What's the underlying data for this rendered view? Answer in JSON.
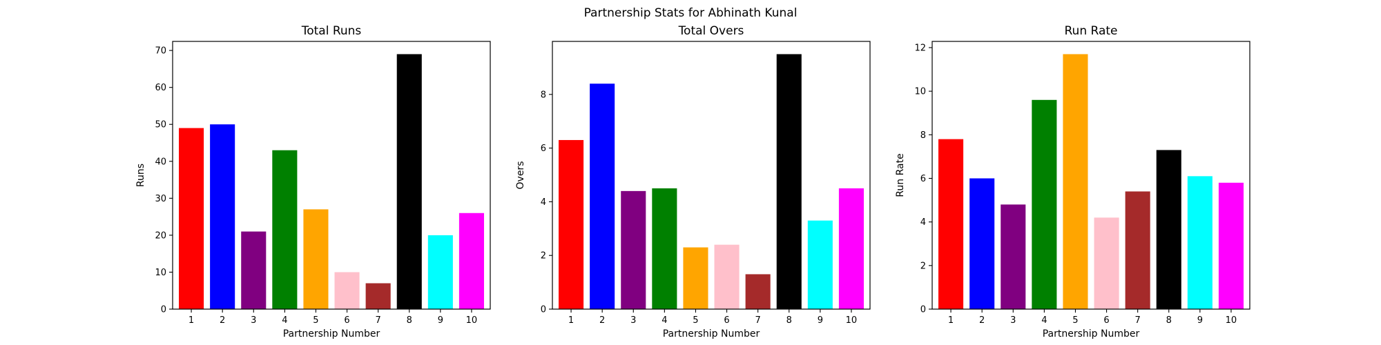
{
  "figure": {
    "title": "Partnership Stats for Abhinath Kunal"
  },
  "chart_data": [
    {
      "type": "bar",
      "title": "Total Runs",
      "xlabel": "Partnership Number",
      "ylabel": "Runs",
      "categories": [
        "1",
        "2",
        "3",
        "4",
        "5",
        "6",
        "7",
        "8",
        "9",
        "10"
      ],
      "values": [
        49,
        50,
        21,
        43,
        27,
        10,
        7,
        69,
        20,
        26
      ],
      "colors": [
        "#ff0000",
        "#0000ff",
        "#800080",
        "#008000",
        "#ffa500",
        "#ffc0cb",
        "#a52a2a",
        "#000000",
        "#00ffff",
        "#ff00ff"
      ],
      "ylim": [
        0,
        72.45
      ],
      "yticks": [
        0,
        10,
        20,
        30,
        40,
        50,
        60,
        70
      ],
      "grid": false
    },
    {
      "type": "bar",
      "title": "Total Overs",
      "xlabel": "Partnership Number",
      "ylabel": "Overs",
      "categories": [
        "1",
        "2",
        "3",
        "4",
        "5",
        "6",
        "7",
        "8",
        "9",
        "10"
      ],
      "values": [
        6.3,
        8.4,
        4.4,
        4.5,
        2.3,
        2.4,
        1.3,
        9.5,
        3.3,
        4.5
      ],
      "colors": [
        "#ff0000",
        "#0000ff",
        "#800080",
        "#008000",
        "#ffa500",
        "#ffc0cb",
        "#a52a2a",
        "#000000",
        "#00ffff",
        "#ff00ff"
      ],
      "ylim": [
        0,
        9.975
      ],
      "yticks": [
        0,
        2,
        4,
        6,
        8
      ],
      "grid": false
    },
    {
      "type": "bar",
      "title": "Run Rate",
      "xlabel": "Partnership Number",
      "ylabel": "Run Rate",
      "categories": [
        "1",
        "2",
        "3",
        "4",
        "5",
        "6",
        "7",
        "8",
        "9",
        "10"
      ],
      "values": [
        7.8,
        6.0,
        4.8,
        9.6,
        11.7,
        4.2,
        5.4,
        7.3,
        6.1,
        5.8
      ],
      "colors": [
        "#ff0000",
        "#0000ff",
        "#800080",
        "#008000",
        "#ffa500",
        "#ffc0cb",
        "#a52a2a",
        "#000000",
        "#00ffff",
        "#ff00ff"
      ],
      "ylim": [
        0,
        12.285
      ],
      "yticks": [
        0,
        2,
        4,
        6,
        8,
        10,
        12
      ],
      "grid": false
    }
  ]
}
